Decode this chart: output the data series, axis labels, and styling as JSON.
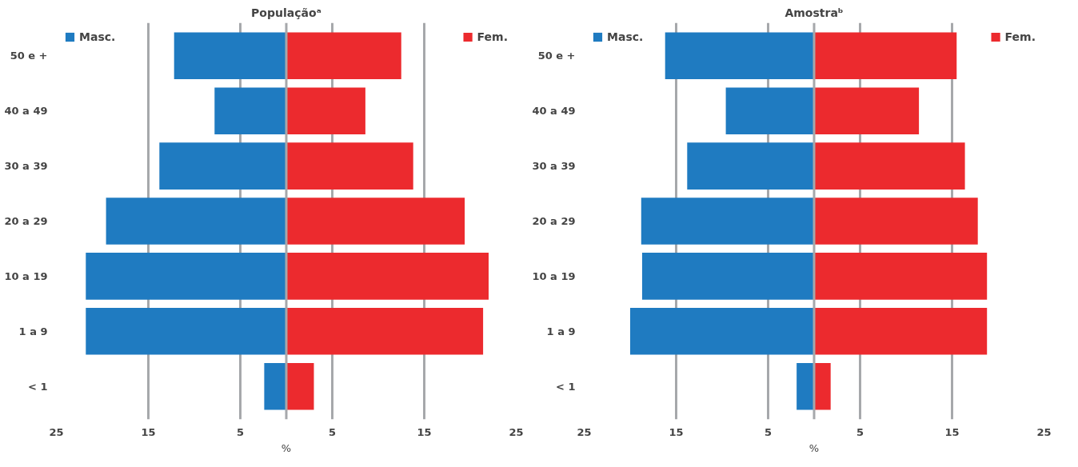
{
  "chart_data": [
    {
      "type": "bar",
      "orientation": "horizontal",
      "stacked": true,
      "legend": "top",
      "title": "Populaçãoᵃ",
      "xlabel": "%",
      "categories": [
        "50 e +",
        "40 a 49",
        "30 a 39",
        "20 a 29",
        "10 a 19",
        "1 a 9",
        "< 1"
      ],
      "series": [
        {
          "name": "Masc.",
          "color": "#1f7bc1",
          "values": [
            -12.2,
            -7.8,
            -13.8,
            -19.6,
            -21.8,
            -21.8,
            -2.4
          ]
        },
        {
          "name": "Fem.",
          "color": "#ec2a2e",
          "values": [
            12.5,
            8.6,
            13.8,
            19.4,
            22.0,
            21.4,
            3.0
          ]
        }
      ],
      "xlim": [
        -25,
        25
      ],
      "xticks": [
        {
          "value": -25,
          "label": "25"
        },
        {
          "value": -15,
          "label": "15"
        },
        {
          "value": -5,
          "label": "5"
        },
        {
          "value": 5,
          "label": "5"
        },
        {
          "value": 15,
          "label": "15"
        },
        {
          "value": 25,
          "label": "25"
        }
      ],
      "grid": "x",
      "ref_lines": [
        {
          "axis": "x",
          "value": 0,
          "color": "#a6a8ab"
        }
      ]
    },
    {
      "type": "bar",
      "orientation": "horizontal",
      "stacked": true,
      "legend": "top",
      "title": "Amostraᵇ",
      "xlabel": "%",
      "categories": [
        "50 e +",
        "40 a 49",
        "30 a 39",
        "20 a 29",
        "10 a 19",
        "1 a 9",
        "< 1"
      ],
      "series": [
        {
          "name": "Masc.",
          "color": "#1f7bc1",
          "values": [
            -16.2,
            -9.6,
            -13.8,
            -18.8,
            -18.7,
            -20.0,
            -1.9
          ]
        },
        {
          "name": "Fem.",
          "color": "#ec2a2e",
          "values": [
            15.5,
            11.4,
            16.4,
            17.8,
            18.8,
            18.8,
            1.8
          ]
        }
      ],
      "xlim": [
        -25,
        25
      ],
      "xticks": [
        {
          "value": -25,
          "label": "25"
        },
        {
          "value": -15,
          "label": "15"
        },
        {
          "value": -5,
          "label": "5"
        },
        {
          "value": 5,
          "label": "5"
        },
        {
          "value": 15,
          "label": "15"
        },
        {
          "value": 25,
          "label": "25"
        }
      ],
      "grid": "x",
      "ref_lines": [
        {
          "axis": "x",
          "value": 0,
          "color": "#a6a8ab"
        }
      ]
    }
  ]
}
